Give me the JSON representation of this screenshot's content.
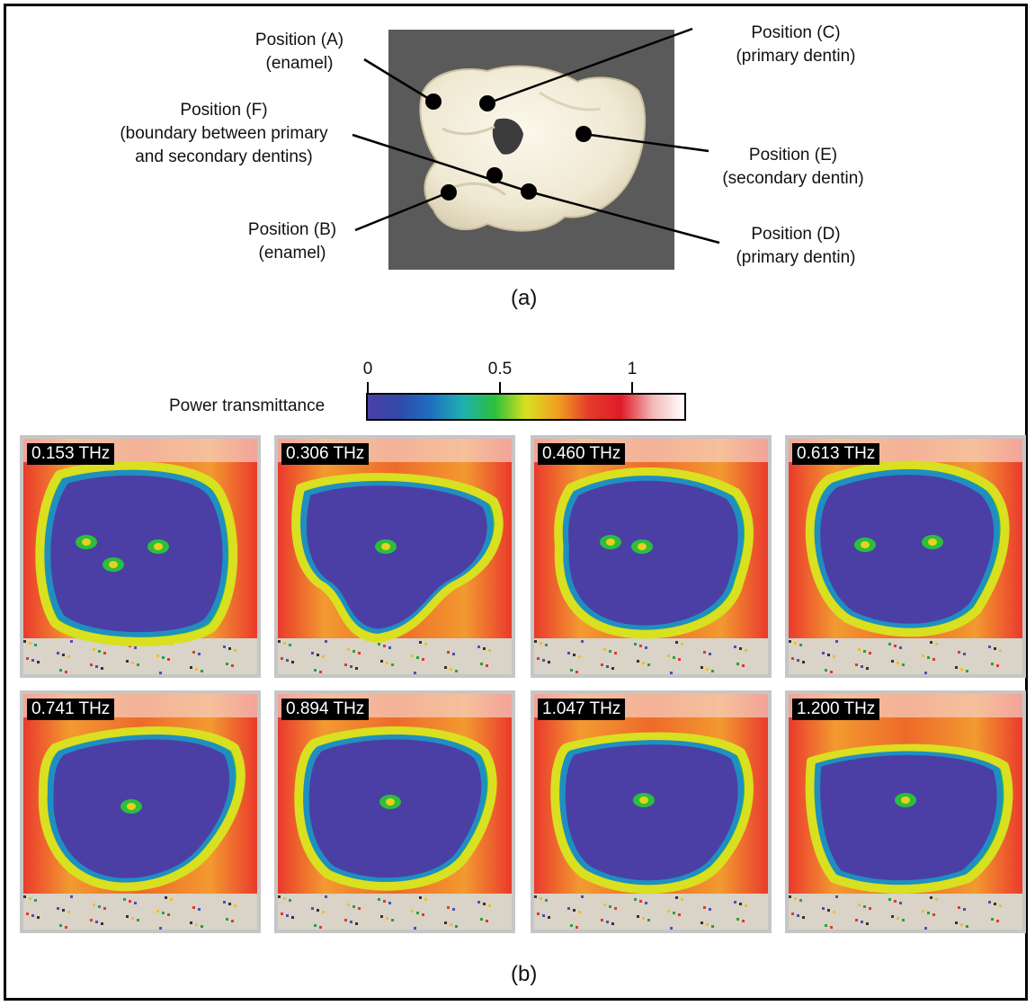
{
  "figure": {
    "panel_a_caption": "(a)",
    "panel_b_caption": "(b)",
    "photo_labels": [
      {
        "id": "A",
        "line1": "Position (A)",
        "line2": "(enamel)"
      },
      {
        "id": "B",
        "line1": "Position (B)",
        "line2": "(enamel)"
      },
      {
        "id": "C",
        "line1": "Position (C)",
        "line2": "(primary dentin)"
      },
      {
        "id": "D",
        "line1": "Position (D)",
        "line2": "(primary dentin)"
      },
      {
        "id": "E",
        "line1": "Position (E)",
        "line2": "(secondary dentin)"
      },
      {
        "id": "F",
        "line1": "Position (F)",
        "line2": "(boundary between primary",
        "line3": "and secondary dentins)"
      }
    ],
    "colorbar": {
      "label": "Power transmittance",
      "ticks": [
        "0",
        "0.5",
        "1"
      ],
      "range": [
        0,
        1.2
      ],
      "gradient_colors": [
        "#4b3fa6",
        "#2f4aa8",
        "#1f6fc0",
        "#1fb0b0",
        "#2bbf3c",
        "#d8e020",
        "#f0a020",
        "#e43a2a",
        "#e01c28",
        "#f2b8b8",
        "#ffffff"
      ]
    },
    "panels": [
      {
        "freq": "0.153 THz"
      },
      {
        "freq": "0.306 THz"
      },
      {
        "freq": "0.460 THz"
      },
      {
        "freq": "0.613 THz"
      },
      {
        "freq": "0.741 THz"
      },
      {
        "freq": "0.894 THz"
      },
      {
        "freq": "1.047 THz"
      },
      {
        "freq": "1.200 THz"
      }
    ]
  }
}
